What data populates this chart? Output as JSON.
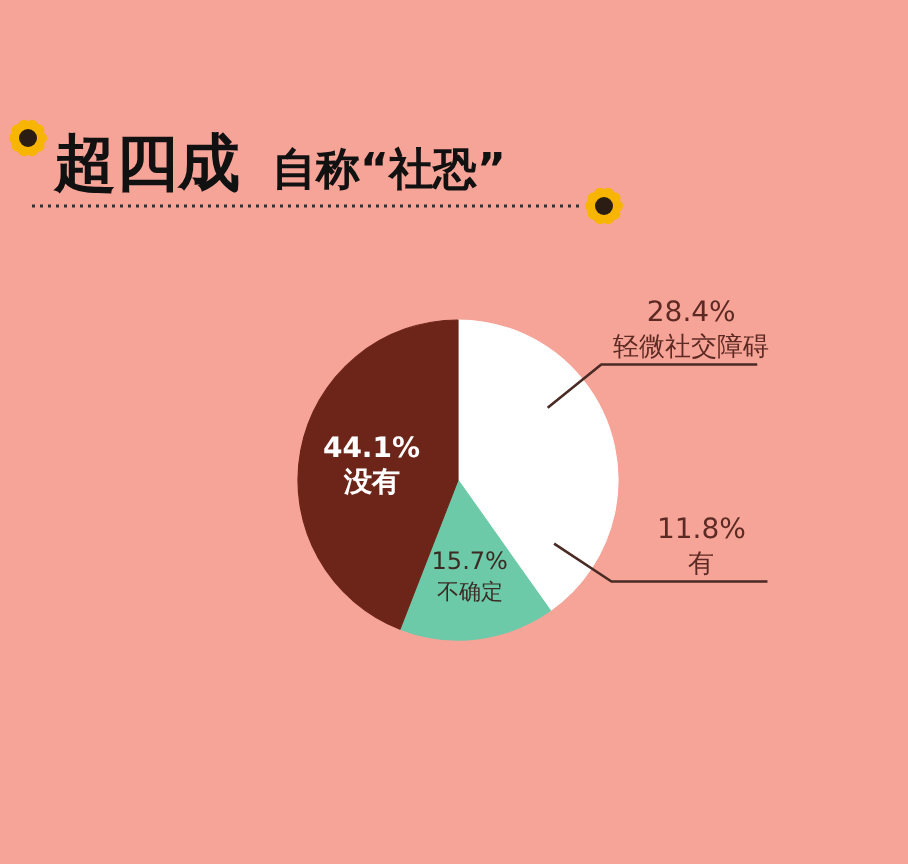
{
  "chart_data": {
    "type": "pie",
    "title": "超四成",
    "subtitle": "自称“社恐”",
    "categories": [
      "轻微社交障碍",
      "有",
      "不确定",
      "没有"
    ],
    "values": [
      28.4,
      11.8,
      15.7,
      44.1
    ],
    "value_labels": [
      "28.4%",
      "11.8%",
      "15.7%",
      "44.1%"
    ],
    "colors": [
      "#ffffff",
      "#ffffff",
      "#6ccaa9",
      "#6e2519"
    ]
  }
}
